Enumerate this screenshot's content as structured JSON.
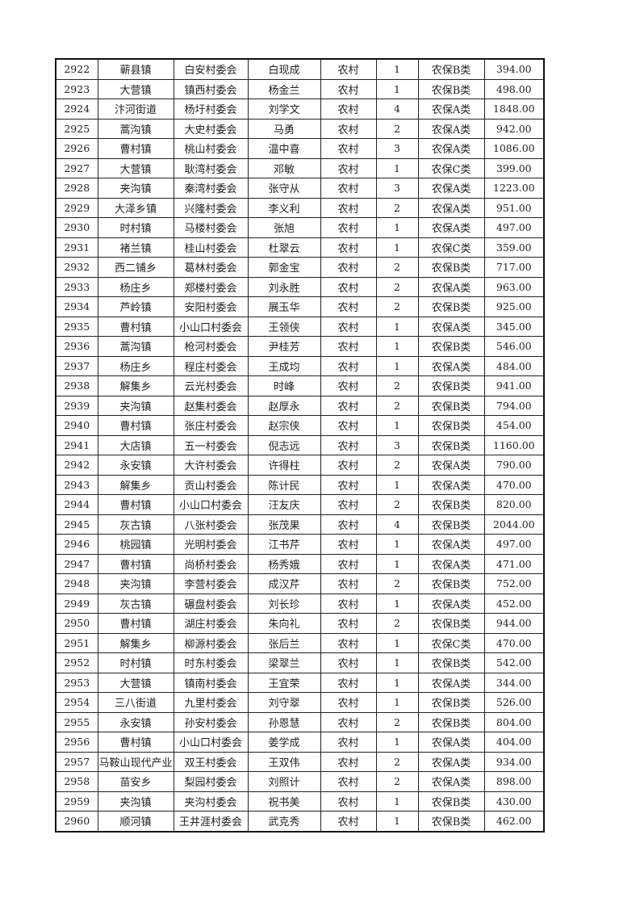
{
  "table": {
    "rows": [
      [
        "2922",
        "蕲县镇",
        "白安村委会",
        "白现成",
        "农村",
        "1",
        "农保B类",
        "394.00"
      ],
      [
        "2923",
        "大营镇",
        "镇西村委会",
        "杨金兰",
        "农村",
        "1",
        "农保B类",
        "498.00"
      ],
      [
        "2924",
        "汴河街道",
        "杨圩村委会",
        "刘学文",
        "农村",
        "4",
        "农保A类",
        "1848.00"
      ],
      [
        "2925",
        "蒿沟镇",
        "大史村委会",
        "马勇",
        "农村",
        "2",
        "农保A类",
        "942.00"
      ],
      [
        "2926",
        "曹村镇",
        "桃山村委会",
        "温中喜",
        "农村",
        "3",
        "农保A类",
        "1086.00"
      ],
      [
        "2927",
        "大营镇",
        "耿湾村委会",
        "邓敏",
        "农村",
        "1",
        "农保C类",
        "399.00"
      ],
      [
        "2928",
        "夹沟镇",
        "秦湾村委会",
        "张守从",
        "农村",
        "3",
        "农保A类",
        "1223.00"
      ],
      [
        "2929",
        "大泽乡镇",
        "兴隆村委会",
        "李义利",
        "农村",
        "2",
        "农保A类",
        "951.00"
      ],
      [
        "2930",
        "时村镇",
        "马楼村委会",
        "张旭",
        "农村",
        "1",
        "农保A类",
        "497.00"
      ],
      [
        "2931",
        "褚兰镇",
        "桂山村委会",
        "杜翠云",
        "农村",
        "1",
        "农保C类",
        "359.00"
      ],
      [
        "2932",
        "西二铺乡",
        "葛林村委会",
        "郭金宝",
        "农村",
        "2",
        "农保B类",
        "717.00"
      ],
      [
        "2933",
        "杨庄乡",
        "郑楼村委会",
        "刘永胜",
        "农村",
        "2",
        "农保A类",
        "963.00"
      ],
      [
        "2934",
        "芦岭镇",
        "安阳村委会",
        "展玉华",
        "农村",
        "2",
        "农保B类",
        "925.00"
      ],
      [
        "2935",
        "曹村镇",
        "小山口村委会",
        "王领侠",
        "农村",
        "1",
        "农保A类",
        "345.00"
      ],
      [
        "2936",
        "蒿沟镇",
        "枪河村委会",
        "尹桂芳",
        "农村",
        "1",
        "农保B类",
        "546.00"
      ],
      [
        "2937",
        "杨庄乡",
        "程庄村委会",
        "王成均",
        "农村",
        "1",
        "农保A类",
        "484.00"
      ],
      [
        "2938",
        "解集乡",
        "云光村委会",
        "时峰",
        "农村",
        "2",
        "农保B类",
        "941.00"
      ],
      [
        "2939",
        "夹沟镇",
        "赵集村委会",
        "赵厚永",
        "农村",
        "2",
        "农保B类",
        "794.00"
      ],
      [
        "2940",
        "曹村镇",
        "张庄村委会",
        "赵宗侠",
        "农村",
        "1",
        "农保B类",
        "454.00"
      ],
      [
        "2941",
        "大店镇",
        "五一村委会",
        "倪志远",
        "农村",
        "3",
        "农保B类",
        "1160.00"
      ],
      [
        "2942",
        "永安镇",
        "大许村委会",
        "许得柱",
        "农村",
        "2",
        "农保A类",
        "790.00"
      ],
      [
        "2943",
        "解集乡",
        "贡山村委会",
        "陈计民",
        "农村",
        "1",
        "农保A类",
        "470.00"
      ],
      [
        "2944",
        "曹村镇",
        "小山口村委会",
        "汪友庆",
        "农村",
        "2",
        "农保B类",
        "820.00"
      ],
      [
        "2945",
        "灰古镇",
        "八张村委会",
        "张茂果",
        "农村",
        "4",
        "农保B类",
        "2044.00"
      ],
      [
        "2946",
        "桃园镇",
        "光明村委会",
        "江书芹",
        "农村",
        "1",
        "农保A类",
        "497.00"
      ],
      [
        "2947",
        "曹村镇",
        "尚桥村委会",
        "杨秀娥",
        "农村",
        "1",
        "农保A类",
        "471.00"
      ],
      [
        "2948",
        "夹沟镇",
        "李营村委会",
        "成汉芹",
        "农村",
        "2",
        "农保B类",
        "752.00"
      ],
      [
        "2949",
        "灰古镇",
        "碾盘村委会",
        "刘长珍",
        "农村",
        "1",
        "农保A类",
        "452.00"
      ],
      [
        "2950",
        "曹村镇",
        "湖庄村委会",
        "朱向礼",
        "农村",
        "2",
        "农保B类",
        "944.00"
      ],
      [
        "2951",
        "解集乡",
        "柳源村委会",
        "张后兰",
        "农村",
        "1",
        "农保C类",
        "470.00"
      ],
      [
        "2952",
        "时村镇",
        "时东村委会",
        "梁翠兰",
        "农村",
        "1",
        "农保B类",
        "542.00"
      ],
      [
        "2953",
        "大营镇",
        "镇南村委会",
        "王宜荣",
        "农村",
        "1",
        "农保A类",
        "344.00"
      ],
      [
        "2954",
        "三八街道",
        "九里村委会",
        "刘守翠",
        "农村",
        "1",
        "农保B类",
        "526.00"
      ],
      [
        "2955",
        "永安镇",
        "孙安村委会",
        "孙恩慧",
        "农村",
        "2",
        "农保B类",
        "804.00"
      ],
      [
        "2956",
        "曹村镇",
        "小山口村委会",
        "姜学成",
        "农村",
        "1",
        "农保A类",
        "404.00"
      ],
      [
        "2957",
        "马鞍山现代产业",
        "双王村委会",
        "王双伟",
        "农村",
        "2",
        "农保A类",
        "934.00"
      ],
      [
        "2958",
        "苗安乡",
        "梨园村委会",
        "刘照计",
        "农村",
        "2",
        "农保A类",
        "898.00"
      ],
      [
        "2959",
        "夹沟镇",
        "夹沟村委会",
        "祝书美",
        "农村",
        "1",
        "农保B类",
        "430.00"
      ],
      [
        "2960",
        "顺河镇",
        "王井涯村委会",
        "武克秀",
        "农村",
        "1",
        "农保B类",
        "462.00"
      ]
    ]
  }
}
